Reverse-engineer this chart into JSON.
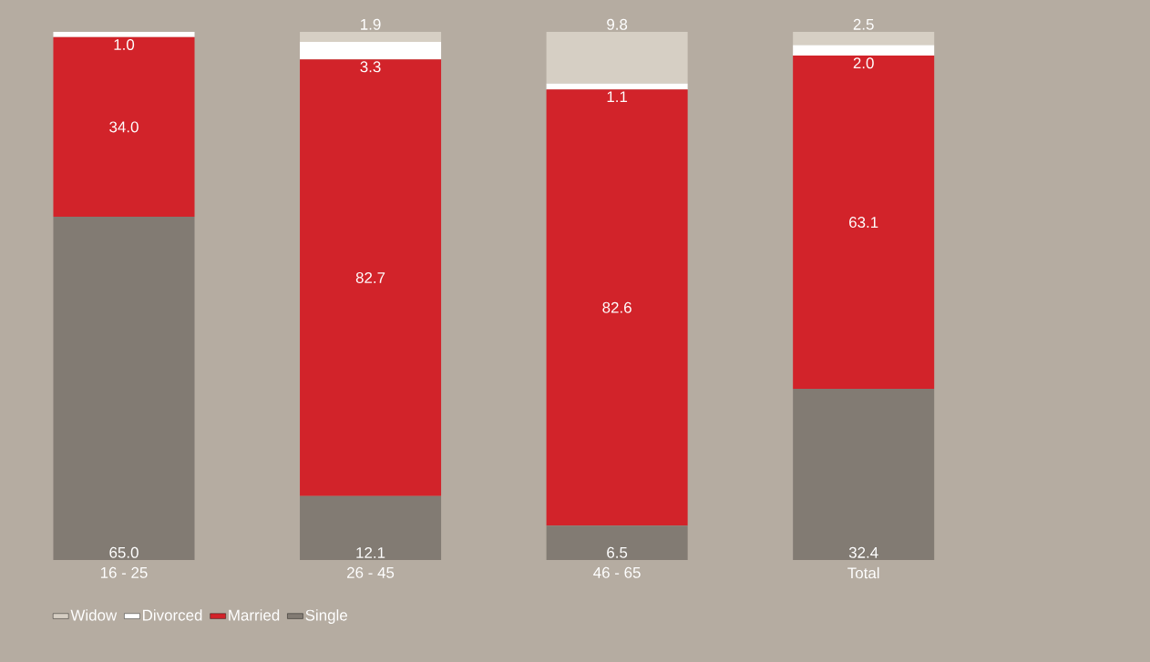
{
  "chart_data": {
    "type": "bar",
    "stacked": true,
    "legend": "bottom left",
    "categories": [
      "16 - 25",
      "26 - 45",
      "46 - 65",
      "Total"
    ],
    "series": [
      {
        "name": "Single",
        "color": "#827b73",
        "values": [
          65.0,
          12.1,
          6.5,
          32.4
        ],
        "value_labels": [
          "65.0",
          "12.1",
          "6.5",
          "32.4"
        ]
      },
      {
        "name": "Married",
        "color": "#d2232a",
        "values": [
          34.0,
          82.7,
          82.6,
          63.1
        ],
        "value_labels": [
          "34.0",
          "82.7",
          "82.6",
          "63.1"
        ]
      },
      {
        "name": "Divorced",
        "color": "#ffffff",
        "values": [
          1.0,
          3.3,
          1.1,
          2.0
        ],
        "value_labels": [
          "1.0",
          "3.3",
          "1.1",
          "2.0"
        ]
      },
      {
        "name": "Widow",
        "color": "#d6cfc4",
        "values": [
          null,
          1.9,
          9.8,
          2.5
        ],
        "value_labels": [
          null,
          "1.9",
          "9.8",
          "2.5"
        ]
      }
    ]
  }
}
